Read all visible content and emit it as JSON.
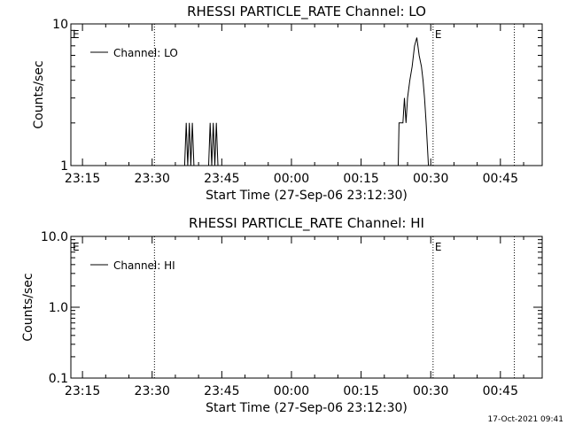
{
  "timestamp": "17-Oct-2021 09:41",
  "chart_data": [
    {
      "type": "line",
      "title": "RHESSI PARTICLE_RATE Channel: LO",
      "xlabel": "Start Time (27-Sep-06 23:12:30)",
      "ylabel": "Counts/sec",
      "yscale": "log",
      "ylim": [
        1,
        10
      ],
      "xlim": [
        "23:12:30",
        "00:54:00"
      ],
      "xticks": [
        "23:15",
        "23:30",
        "23:45",
        "00:00",
        "00:15",
        "00:30",
        "00:45"
      ],
      "yticks": [
        "1",
        "10"
      ],
      "grid": false,
      "legend": {
        "placement": "top-left",
        "entries": [
          "Channel: LO"
        ]
      },
      "markers": [
        {
          "time": "23:12:30",
          "label": "E"
        },
        {
          "time": "23:30:30",
          "label": ""
        },
        {
          "time": "00:30:30",
          "label": "E"
        },
        {
          "time": "00:48:00",
          "label": ""
        }
      ],
      "series": [
        {
          "name": "Channel: LO",
          "points": [
            [
              "23:12:30",
              1
            ],
            [
              "23:37:00",
              1
            ],
            [
              "23:37:20",
              2
            ],
            [
              "23:37:40",
              1
            ],
            [
              "23:38:00",
              2
            ],
            [
              "23:38:20",
              1
            ],
            [
              "23:38:40",
              2
            ],
            [
              "23:39:00",
              1
            ],
            [
              "23:42:10",
              1
            ],
            [
              "23:42:30",
              2
            ],
            [
              "23:42:50",
              1
            ],
            [
              "23:43:10",
              2
            ],
            [
              "23:43:30",
              1
            ],
            [
              "23:43:50",
              2
            ],
            [
              "23:44:10",
              1
            ],
            [
              "00:23:00",
              1
            ],
            [
              "00:23:10",
              2
            ],
            [
              "00:24:00",
              2
            ],
            [
              "00:24:20",
              3
            ],
            [
              "00:24:40",
              2
            ],
            [
              "00:25:00",
              3
            ],
            [
              "00:25:30",
              4
            ],
            [
              "00:26:00",
              5
            ],
            [
              "00:26:30",
              7
            ],
            [
              "00:27:00",
              8
            ],
            [
              "00:27:30",
              6
            ],
            [
              "00:28:00",
              5
            ],
            [
              "00:28:20",
              4
            ],
            [
              "00:28:40",
              3
            ],
            [
              "00:29:00",
              2
            ],
            [
              "00:29:30",
              1
            ],
            [
              "00:54:00",
              1
            ]
          ]
        }
      ]
    },
    {
      "type": "line",
      "title": "RHESSI PARTICLE_RATE Channel: HI",
      "xlabel": "Start Time (27-Sep-06 23:12:30)",
      "ylabel": "Counts/sec",
      "yscale": "log",
      "ylim": [
        0.1,
        10
      ],
      "xlim": [
        "23:12:30",
        "00:54:00"
      ],
      "xticks": [
        "23:15",
        "23:30",
        "23:45",
        "00:00",
        "00:15",
        "00:30",
        "00:45"
      ],
      "yticks": [
        "0.1",
        "1.0",
        "10.0"
      ],
      "grid": false,
      "legend": {
        "placement": "top-left",
        "entries": [
          "Channel: HI"
        ]
      },
      "markers": [
        {
          "time": "23:12:30",
          "label": "E"
        },
        {
          "time": "23:30:30",
          "label": ""
        },
        {
          "time": "00:30:30",
          "label": "E"
        },
        {
          "time": "00:48:00",
          "label": ""
        }
      ],
      "series": [
        {
          "name": "Channel: HI",
          "points": []
        }
      ]
    }
  ]
}
